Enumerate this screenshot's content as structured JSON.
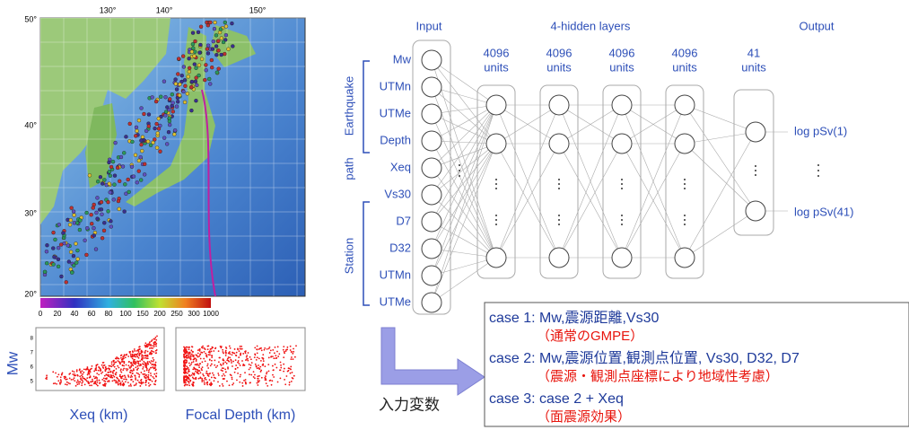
{
  "map": {
    "lon_labels": [
      "130°",
      "140°",
      "150°"
    ],
    "lat_labels": [
      "50°",
      "40°",
      "30°",
      "20°"
    ],
    "colorbar_labels": [
      "0",
      "20",
      "40",
      "60",
      "80",
      "100",
      "150",
      "200",
      "250",
      "300",
      "1000"
    ]
  },
  "scatter_plots": {
    "y_label": "Mw",
    "y_ticks": [
      "8",
      "7",
      "6",
      "5"
    ],
    "panels": [
      {
        "x_label": "Xeq (km)"
      },
      {
        "x_label": "Focal Depth (km)"
      }
    ]
  },
  "network": {
    "headers": {
      "input": "Input",
      "hidden": "4-hidden layers",
      "output": "Output"
    },
    "input_nodes": [
      "Mw",
      "UTMn",
      "UTMe",
      "Depth",
      "Xeq",
      "Vs30",
      "D7",
      "D32",
      "UTMn",
      "UTMe"
    ],
    "groups": [
      "Earthquake",
      "path",
      "Station"
    ],
    "hidden_layers": [
      [
        "4096",
        "units"
      ],
      [
        "4096",
        "units"
      ],
      [
        "4096",
        "units"
      ],
      [
        "4096",
        "units"
      ]
    ],
    "output_layer": [
      "41",
      "units"
    ],
    "outputs": [
      "log pSv(1)",
      "log pSv(41)"
    ]
  },
  "input_label": "入力変数",
  "cases": [
    {
      "line": "case 1: Mw,震源距離,Vs30",
      "note": "（通常のGMPE）"
    },
    {
      "line": "case 2: Mw,震源位置,観測点位置, Vs30, D32, D7",
      "note": "（震源・観測点座標により地域性考慮）"
    },
    {
      "line": "case 3: case 2 + Xeq",
      "note": "（面震源効果）"
    }
  ]
}
